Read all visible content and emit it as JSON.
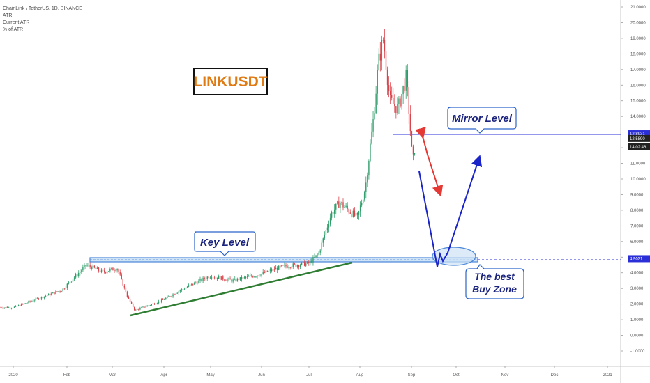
{
  "header": {
    "symbol_line": "ChainLink / TetherUS, 1D, BINANCE",
    "indicator_1": "ATR",
    "indicator_2": "Current ATR",
    "indicator_3": "% of ATR"
  },
  "chart_data": {
    "type": "candlestick",
    "title": "LINKUSDT",
    "ylim": [
      -1,
      21
    ],
    "y_ticks": [
      "21.0000",
      "20.0000",
      "19.0000",
      "18.0000",
      "17.0000",
      "16.0000",
      "15.0000",
      "14.0000",
      "13.0000",
      "12.0000",
      "11.0000",
      "10.0000",
      "9.0000",
      "8.0000",
      "7.0000",
      "6.0000",
      "5.0000",
      "4.0000",
      "3.0000",
      "2.0000",
      "1.0000",
      "0.0000",
      "-1.0000"
    ],
    "x_ticks": [
      "2020",
      "Feb",
      "Mar",
      "Apr",
      "May",
      "Jun",
      "Jul",
      "Aug",
      "Sep",
      "Oct",
      "Nov",
      "Dec",
      "2021"
    ],
    "price_path": [
      {
        "date": "2020-01-01",
        "close": 1.78
      },
      {
        "date": "2020-01-15",
        "close": 2.3
      },
      {
        "date": "2020-01-31",
        "close": 2.9
      },
      {
        "date": "2020-02-15",
        "close": 4.5
      },
      {
        "date": "2020-02-25",
        "close": 4.05
      },
      {
        "date": "2020-03-05",
        "close": 4.3
      },
      {
        "date": "2020-03-12",
        "close": 2.3
      },
      {
        "date": "2020-03-16",
        "close": 1.6
      },
      {
        "date": "2020-04-01",
        "close": 2.2
      },
      {
        "date": "2020-04-15",
        "close": 3.0
      },
      {
        "date": "2020-05-01",
        "close": 3.8
      },
      {
        "date": "2020-05-15",
        "close": 3.5
      },
      {
        "date": "2020-06-01",
        "close": 3.9
      },
      {
        "date": "2020-06-15",
        "close": 4.4
      },
      {
        "date": "2020-07-01",
        "close": 4.6
      },
      {
        "date": "2020-07-07",
        "close": 5.2
      },
      {
        "date": "2020-07-15",
        "close": 7.8
      },
      {
        "date": "2020-07-20",
        "close": 8.5
      },
      {
        "date": "2020-07-31",
        "close": 7.5
      },
      {
        "date": "2020-08-05",
        "close": 9.5
      },
      {
        "date": "2020-08-10",
        "close": 14.0
      },
      {
        "date": "2020-08-13",
        "close": 17.5
      },
      {
        "date": "2020-08-16",
        "close": 19.0
      },
      {
        "date": "2020-08-20",
        "close": 15.0
      },
      {
        "date": "2020-08-25",
        "close": 14.5
      },
      {
        "date": "2020-08-30",
        "close": 16.5
      },
      {
        "date": "2020-09-01",
        "close": 14.0
      },
      {
        "date": "2020-09-03",
        "close": 11.0
      },
      {
        "date": "2020-09-05",
        "close": 12.589
      }
    ],
    "price_labels": [
      {
        "value": 12.8931,
        "text": "12.8931",
        "color": "#2b2fd8"
      },
      {
        "value": 12.589,
        "text": "12.5890",
        "color": "#222222"
      },
      {
        "value": 12.05,
        "text": "14:02:46",
        "color": "#222222"
      },
      {
        "value": 4.9031,
        "text": "4.9031",
        "color": "#2b2fd8"
      }
    ],
    "annotations": {
      "key_level": {
        "text": "Key Level",
        "value": 4.9031
      },
      "mirror_level": {
        "text": "Mirror Level",
        "value": 12.8931
      },
      "buy_zone": {
        "line1": "The best",
        "line2": "Buy Zone"
      },
      "trendline_color": "#2e7d32",
      "bearish_arrow_color": "#e53935",
      "projection_color": "#1a24c8"
    }
  }
}
